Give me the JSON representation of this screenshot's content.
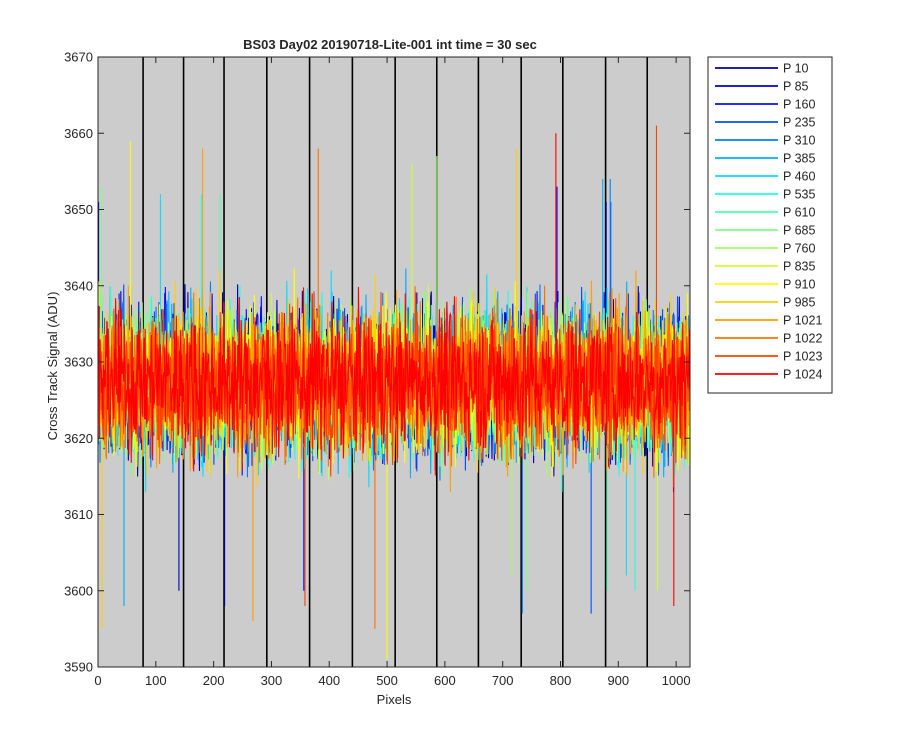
{
  "chart_data": {
    "type": "line",
    "title": "BS03 Day02 20190718-Lite-001 int time = 30 sec",
    "xlabel": "Pixels",
    "ylabel": "Cross Track Signal (ADU)",
    "xlim": [
      0,
      1024
    ],
    "ylim": [
      3590,
      3670
    ],
    "xticks": [
      0,
      100,
      200,
      300,
      400,
      500,
      600,
      700,
      800,
      900,
      1000
    ],
    "yticks": [
      3590,
      3600,
      3610,
      3620,
      3630,
      3640,
      3650,
      3660,
      3670
    ],
    "xtick_labels": [
      "0",
      "100",
      "200",
      "300",
      "400",
      "500",
      "600",
      "700",
      "800",
      "900",
      "1000"
    ],
    "ytick_labels": [
      "3590",
      "3600",
      "3610",
      "3620",
      "3630",
      "3640",
      "3650",
      "3660",
      "3670"
    ],
    "background_color": "#cccccc",
    "grid": false,
    "vertical_separators_x": [
      78,
      148,
      218,
      292,
      366,
      440,
      514,
      586,
      658,
      732,
      804,
      878,
      950
    ],
    "legend_location": "outside-right",
    "series": [
      {
        "name": "P 10",
        "color": "#0000a8",
        "mean": 3627.5,
        "min": 3598,
        "max": 3651
      },
      {
        "name": "P 85",
        "color": "#0000d0",
        "mean": 3627.5,
        "min": 3600,
        "max": 3651
      },
      {
        "name": "P 160",
        "color": "#0010ff",
        "mean": 3627.5,
        "min": 3600,
        "max": 3653
      },
      {
        "name": "P 235",
        "color": "#0050ff",
        "mean": 3627.5,
        "min": 3597,
        "max": 3651
      },
      {
        "name": "P 310",
        "color": "#0080ff",
        "mean": 3627.5,
        "min": 3597,
        "max": 3654
      },
      {
        "name": "P 385",
        "color": "#00b0ff",
        "mean": 3627.5,
        "min": 3598,
        "max": 3654
      },
      {
        "name": "P 460",
        "color": "#00e0ff",
        "mean": 3627.5,
        "min": 3602,
        "max": 3652
      },
      {
        "name": "P 535",
        "color": "#20ffe0",
        "mean": 3627.5,
        "min": 3600,
        "max": 3652
      },
      {
        "name": "P 610",
        "color": "#50ffb0",
        "mean": 3627.5,
        "min": 3600,
        "max": 3652
      },
      {
        "name": "P 685",
        "color": "#80ff80",
        "mean": 3627.5,
        "min": 3600,
        "max": 3653
      },
      {
        "name": "P 760",
        "color": "#a0ff60",
        "mean": 3627.5,
        "min": 3602,
        "max": 3657
      },
      {
        "name": "P 835",
        "color": "#d0ff30",
        "mean": 3627.5,
        "min": 3600,
        "max": 3656
      },
      {
        "name": "P 910",
        "color": "#ffff00",
        "mean": 3627.5,
        "min": 3591,
        "max": 3659
      },
      {
        "name": "P 985",
        "color": "#ffd000",
        "mean": 3627.5,
        "min": 3595,
        "max": 3658
      },
      {
        "name": "P 1021",
        "color": "#ffa000",
        "mean": 3627.5,
        "min": 3596,
        "max": 3658
      },
      {
        "name": "P 1022",
        "color": "#ff7000",
        "mean": 3627.5,
        "min": 3595,
        "max": 3658
      },
      {
        "name": "P 1023",
        "color": "#ff4000",
        "mean": 3627.5,
        "min": 3598,
        "max": 3661
      },
      {
        "name": "P 1024",
        "color": "#ff0000",
        "mean": 3627.5,
        "min": 3598,
        "max": 3660
      }
    ]
  }
}
